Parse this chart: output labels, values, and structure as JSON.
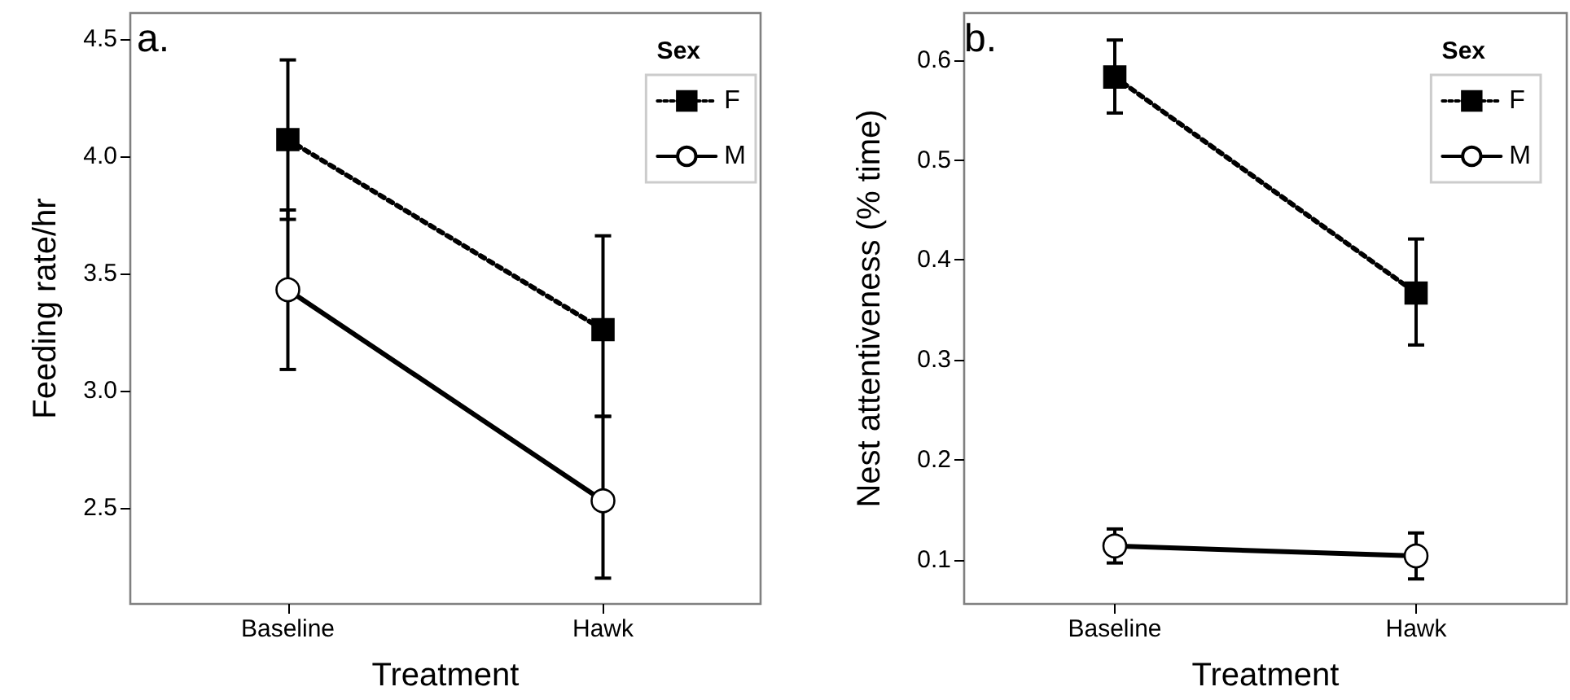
{
  "chart_data": [
    {
      "type": "line",
      "xlabel": "Treatment",
      "ylabel": "Feeding rate/hr",
      "legend_title": "Sex",
      "legend": "top right",
      "grid": false,
      "annotations": [
        "a."
      ],
      "categories": [
        "Baseline",
        "Hawk"
      ],
      "ylim": [
        2.09,
        4.61
      ],
      "yticks": [
        2.5,
        {
          "value": 3,
          "label": "3.0"
        },
        3.5,
        {
          "value": 4,
          "label": "4.0"
        },
        4.5
      ],
      "series": [
        {
          "name": "F",
          "color": "#000000",
          "marker": "square",
          "line_style": "dotted",
          "values": [
            4.07,
            3.26
          ],
          "errors": [
            [
              3.73,
              4.41
            ],
            [
              2.89,
              3.66
            ]
          ]
        },
        {
          "name": "M",
          "color": "#000000",
          "marker": "circle",
          "line_style": "solid",
          "values": [
            3.43,
            2.53
          ],
          "errors": [
            [
              3.09,
              3.77
            ],
            [
              2.2,
              2.89
            ]
          ]
        }
      ]
    },
    {
      "type": "line",
      "xlabel": "Treatment",
      "ylabel": "Nest attentiveness (% time)",
      "legend_title": "Sex",
      "legend": "top right",
      "grid": false,
      "annotations": [
        "b."
      ],
      "categories": [
        "Baseline",
        "Hawk"
      ],
      "ylim": [
        0.056,
        0.647
      ],
      "yticks": [
        0.1,
        0.2,
        0.3,
        0.4,
        0.5,
        0.6
      ],
      "series": [
        {
          "name": "F",
          "color": "#000000",
          "marker": "square",
          "line_style": "dotted",
          "values": [
            0.583,
            0.367
          ],
          "errors": [
            [
              0.547,
              0.62
            ],
            [
              0.315,
              0.421
            ]
          ]
        },
        {
          "name": "M",
          "color": "#000000",
          "marker": "circle",
          "line_style": "solid",
          "values": [
            0.114,
            0.104
          ],
          "errors": [
            [
              0.097,
              0.131
            ],
            [
              0.081,
              0.127
            ]
          ]
        }
      ]
    }
  ]
}
